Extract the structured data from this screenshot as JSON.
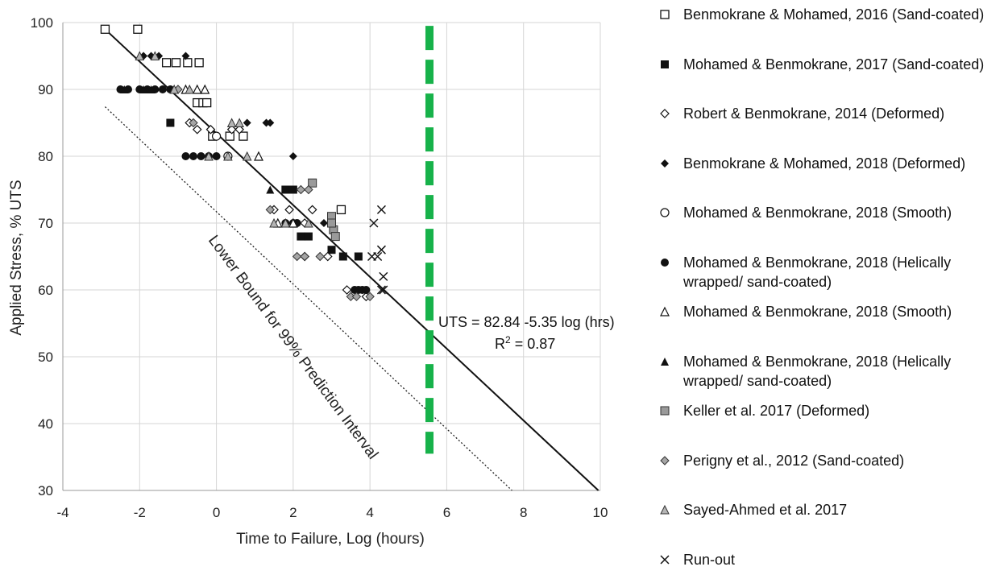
{
  "chart_data": {
    "type": "scatter",
    "xlabel": "Time to Failure, Log (hours)",
    "ylabel": "Applied Stress, % UTS",
    "xlim": [
      -4,
      10
    ],
    "ylim": [
      30,
      100
    ],
    "xticks": [
      -4,
      -2,
      0,
      2,
      4,
      6,
      8,
      10
    ],
    "yticks": [
      30,
      40,
      50,
      60,
      70,
      80,
      90,
      100
    ],
    "regression": {
      "label": "UTS = 82.84 -5.35 log (hrs)",
      "r2_prefix": "R",
      "r2_sup": "2",
      "r2_value": " = 0.87",
      "points": [
        [
          -2.9,
          99
        ],
        [
          9.95,
          30
        ]
      ]
    },
    "lower_bound": {
      "label": "Lower Bound for 99% Prediction Interval",
      "points": [
        [
          -2.9,
          87.4
        ],
        [
          7.7,
          30
        ]
      ]
    },
    "marker_line": {
      "x": 5.55,
      "y_range": [
        35.5,
        99.5
      ],
      "color": "#17b24a"
    },
    "series": [
      {
        "name": "Benmokrane & Mohamed, 2016 (Sand-coated)",
        "marker": "open-square",
        "points": [
          [
            -2.9,
            99
          ],
          [
            -2.05,
            99
          ],
          [
            -1.3,
            94
          ],
          [
            -1.05,
            94
          ],
          [
            -0.75,
            94
          ],
          [
            -0.45,
            94
          ],
          [
            -0.5,
            88
          ],
          [
            -0.35,
            88
          ],
          [
            -0.25,
            88
          ],
          [
            -0.1,
            83
          ],
          [
            0.35,
            83
          ],
          [
            0.7,
            83
          ],
          [
            3.25,
            72
          ]
        ]
      },
      {
        "name": "Mohamed & Benmokrane, 2017 (Sand-coated)",
        "marker": "filled-square",
        "points": [
          [
            -1.2,
            85
          ],
          [
            1.8,
            75
          ],
          [
            2.0,
            75
          ],
          [
            2.2,
            68
          ],
          [
            2.4,
            68
          ],
          [
            3.0,
            66
          ],
          [
            3.3,
            65
          ],
          [
            3.7,
            65
          ]
        ]
      },
      {
        "name": "Robert & Benmokrane, 2014 (Deformed)",
        "marker": "open-diamond",
        "points": [
          [
            -0.7,
            85
          ],
          [
            -0.5,
            84
          ],
          [
            -0.15,
            84
          ],
          [
            0.4,
            84
          ],
          [
            0.6,
            84
          ],
          [
            1.5,
            72
          ],
          [
            1.9,
            72
          ],
          [
            2.3,
            70
          ],
          [
            2.5,
            72
          ],
          [
            2.9,
            65
          ],
          [
            2.3,
            65
          ],
          [
            3.9,
            59
          ],
          [
            3.4,
            60
          ]
        ]
      },
      {
        "name": "Benmokrane & Mohamed, 2018 (Deformed)",
        "marker": "filled-diamond",
        "points": [
          [
            -1.9,
            95
          ],
          [
            -1.7,
            95
          ],
          [
            -1.5,
            95
          ],
          [
            -0.8,
            95
          ],
          [
            0.8,
            85
          ],
          [
            1.3,
            85
          ],
          [
            1.4,
            85
          ],
          [
            2.0,
            80
          ],
          [
            2.8,
            70
          ]
        ]
      },
      {
        "name": "Mohamed & Benmokrane, 2018 (Smooth)",
        "marker": "open-circle",
        "points": [
          [
            0.0,
            83
          ],
          [
            0.3,
            80
          ]
        ]
      },
      {
        "name": "Mohamed & Benmokrane, 2018 (Helically wrapped/ sand-coated)",
        "marker": "filled-circle",
        "points": [
          [
            -2.5,
            90
          ],
          [
            -2.3,
            90
          ],
          [
            -2.0,
            90
          ],
          [
            -1.8,
            90
          ],
          [
            -1.6,
            90
          ],
          [
            -1.4,
            90
          ],
          [
            -1.2,
            90
          ],
          [
            -0.8,
            80
          ],
          [
            -0.6,
            80
          ],
          [
            -0.4,
            80
          ],
          [
            -0.2,
            80
          ],
          [
            0.0,
            80
          ],
          [
            1.8,
            70
          ],
          [
            2.0,
            70
          ],
          [
            2.1,
            70
          ],
          [
            3.6,
            60
          ],
          [
            3.7,
            60
          ],
          [
            3.8,
            60
          ],
          [
            3.9,
            60
          ]
        ]
      },
      {
        "name": "Mohamed & Benmokrane, 2018 (Smooth)",
        "marker": "open-triangle",
        "points": [
          [
            -0.8,
            90
          ],
          [
            -0.5,
            90
          ],
          [
            -0.3,
            90
          ],
          [
            1.1,
            80
          ],
          [
            1.6,
            70
          ],
          [
            2.0,
            70
          ]
        ]
      },
      {
        "name": "Mohamed & Benmokrane, 2018 (Helically wrapped/ sand-coated)",
        "marker": "filled-triangle",
        "points": [
          [
            -2.4,
            90
          ],
          [
            -1.9,
            90
          ],
          [
            -1.7,
            90
          ],
          [
            1.4,
            75
          ],
          [
            2.4,
            70
          ]
        ]
      },
      {
        "name": "Keller et al. 2017 (Deformed)",
        "marker": "gray-square",
        "points": [
          [
            2.5,
            76
          ],
          [
            3.0,
            71
          ],
          [
            3.05,
            69
          ],
          [
            3.1,
            68
          ],
          [
            3.0,
            70
          ]
        ]
      },
      {
        "name": "Perigny et al., 2012 (Sand-coated)",
        "marker": "gray-diamond",
        "points": [
          [
            -1.0,
            90
          ],
          [
            -0.6,
            85
          ],
          [
            1.4,
            72
          ],
          [
            2.1,
            65
          ],
          [
            2.3,
            65
          ],
          [
            2.7,
            65
          ],
          [
            3.5,
            59
          ],
          [
            3.65,
            59
          ],
          [
            4.0,
            59
          ],
          [
            2.2,
            75
          ],
          [
            2.4,
            75
          ]
        ]
      },
      {
        "name": "Sayed-Ahmed et al. 2017",
        "marker": "gray-triangle",
        "points": [
          [
            -2.0,
            95
          ],
          [
            -1.6,
            95
          ],
          [
            -1.1,
            90
          ],
          [
            -0.7,
            90
          ],
          [
            -0.2,
            80
          ],
          [
            0.3,
            80
          ],
          [
            0.6,
            85
          ],
          [
            0.8,
            80
          ],
          [
            1.5,
            70
          ],
          [
            1.8,
            70
          ],
          [
            2.4,
            70
          ],
          [
            0.4,
            85
          ]
        ]
      },
      {
        "name": "Run-out",
        "marker": "x",
        "points": [
          [
            4.3,
            72
          ],
          [
            4.1,
            70
          ],
          [
            4.3,
            66
          ],
          [
            4.05,
            65
          ],
          [
            4.2,
            65
          ],
          [
            4.35,
            62
          ],
          [
            4.3,
            60
          ],
          [
            4.35,
            60
          ]
        ]
      }
    ]
  }
}
